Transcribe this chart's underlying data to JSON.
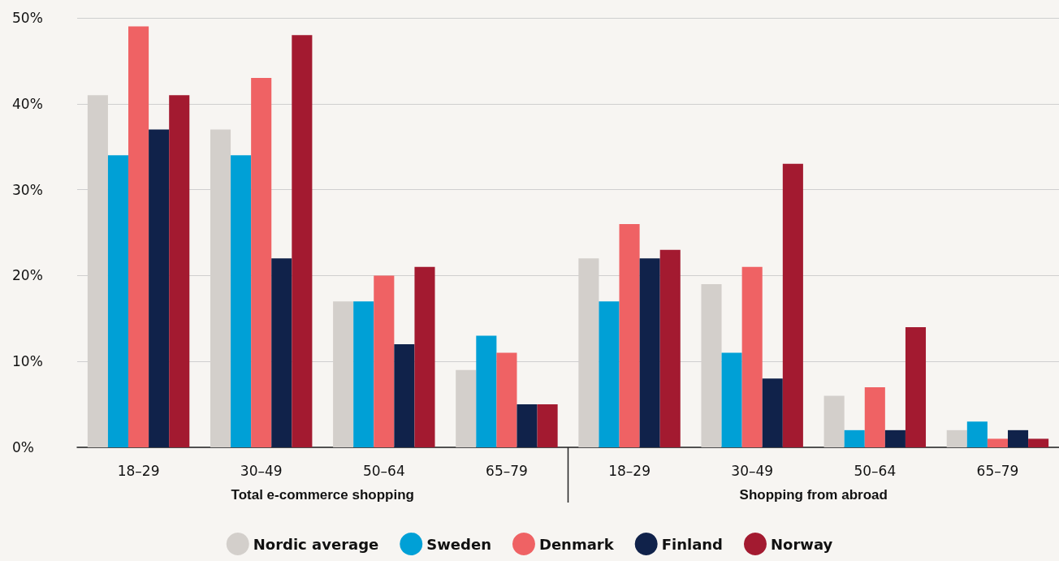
{
  "chart_data": {
    "type": "bar",
    "categories": [
      "18–29",
      "30–49",
      "50–64",
      "65–79",
      "18–29",
      "30–49",
      "50–64",
      "65–79"
    ],
    "series": [
      {
        "name": "Nordic average",
        "color": "#d3cfcb",
        "values": [
          41,
          37,
          17,
          9,
          22,
          19,
          6,
          2
        ]
      },
      {
        "name": "Sweden",
        "color": "#00a0d6",
        "values": [
          34,
          34,
          17,
          13,
          17,
          11,
          2,
          3
        ]
      },
      {
        "name": "Denmark",
        "color": "#ef6264",
        "values": [
          49,
          43,
          20,
          11,
          26,
          21,
          7,
          1
        ]
      },
      {
        "name": "Finland",
        "color": "#10224a",
        "values": [
          37,
          22,
          12,
          5,
          22,
          8,
          2,
          2
        ]
      },
      {
        "name": "Norway",
        "color": "#a31a30",
        "values": [
          41,
          48,
          21,
          5,
          23,
          33,
          14,
          1
        ]
      }
    ],
    "ylim": [
      0,
      50
    ],
    "yticks": [
      {
        "value": 0,
        "label": "0%"
      },
      {
        "value": 10,
        "label": "10%"
      },
      {
        "value": 20,
        "label": "20%"
      },
      {
        "value": 30,
        "label": "30%"
      },
      {
        "value": 40,
        "label": "40%"
      },
      {
        "value": 50,
        "label": "50%"
      }
    ],
    "grid": "y",
    "legend": "bottom",
    "annotations": [
      {
        "text": "Total e-commerce shopping"
      },
      {
        "text": "Shopping from abroad"
      }
    ]
  }
}
